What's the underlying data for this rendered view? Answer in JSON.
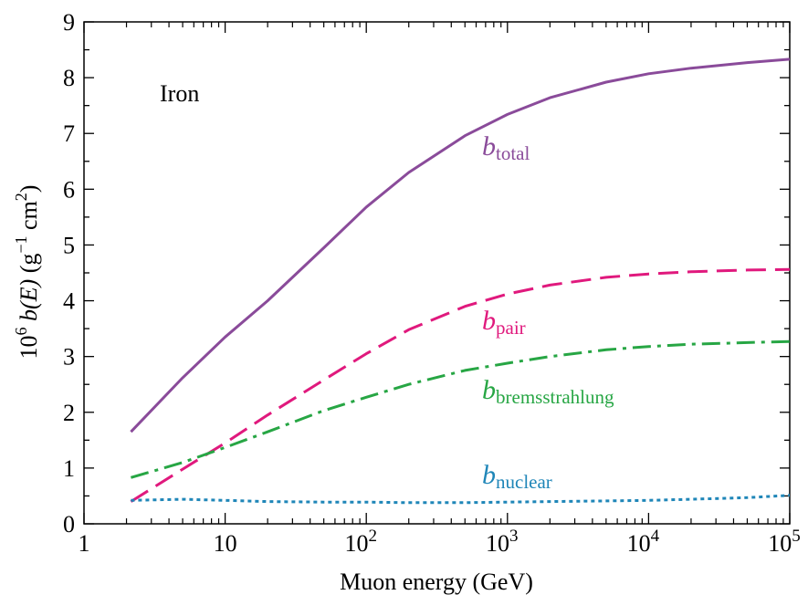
{
  "chart_data": {
    "type": "line",
    "title": "",
    "xlabel": "Muon energy (GeV)",
    "ylabel": {
      "base": "10",
      "exp": "6",
      "func": "b(E)",
      "units_open": "(g",
      "units_exp": "−1",
      "units_mid": " cm",
      "units_exp2": "2",
      "units_close": ")"
    },
    "x_scale": "log",
    "xlim": [
      1,
      100000
    ],
    "ylim": [
      0,
      9
    ],
    "x_ticks": [
      {
        "value": 1,
        "label": "1",
        "exp": ""
      },
      {
        "value": 10,
        "label": "10",
        "exp": ""
      },
      {
        "value": 100,
        "label": "10",
        "exp": "2"
      },
      {
        "value": 1000,
        "label": "10",
        "exp": "3"
      },
      {
        "value": 10000,
        "label": "10",
        "exp": "4"
      },
      {
        "value": 100000,
        "label": "10",
        "exp": "5"
      }
    ],
    "y_ticks": [
      "0",
      "1",
      "2",
      "3",
      "4",
      "5",
      "6",
      "7",
      "8",
      "9"
    ],
    "grid": false,
    "annotation": "Iron",
    "series": [
      {
        "id": "total",
        "name": "b",
        "subscript": "total",
        "color": "#8a4b9a",
        "dash": "solid",
        "x": [
          2.15,
          5,
          10,
          20,
          50,
          100,
          200,
          500,
          1000,
          2000,
          5000,
          10000,
          20000,
          50000,
          100000
        ],
        "y": [
          1.65,
          2.62,
          3.35,
          4.0,
          4.95,
          5.68,
          6.3,
          6.96,
          7.34,
          7.64,
          7.92,
          8.07,
          8.17,
          8.27,
          8.33
        ]
      },
      {
        "id": "pair",
        "name": "b",
        "subscript": "pair",
        "color": "#e0197d",
        "dash": "dashed",
        "x": [
          2.15,
          5,
          10,
          20,
          50,
          100,
          200,
          500,
          1000,
          2000,
          5000,
          10000,
          20000,
          50000,
          100000
        ],
        "y": [
          0.4,
          0.98,
          1.45,
          1.95,
          2.58,
          3.05,
          3.48,
          3.9,
          4.12,
          4.28,
          4.42,
          4.48,
          4.52,
          4.55,
          4.56
        ]
      },
      {
        "id": "brems",
        "name": "b",
        "subscript": "bremsstrahlung",
        "color": "#27a644",
        "dash": "dashdot",
        "x": [
          2.15,
          5,
          10,
          20,
          50,
          100,
          200,
          500,
          1000,
          2000,
          5000,
          10000,
          20000,
          50000,
          100000
        ],
        "y": [
          0.83,
          1.1,
          1.37,
          1.65,
          2.03,
          2.27,
          2.5,
          2.75,
          2.88,
          3.0,
          3.12,
          3.18,
          3.22,
          3.25,
          3.27
        ]
      },
      {
        "id": "nuclear",
        "name": "b",
        "subscript": "nuclear",
        "color": "#1f86b8",
        "dash": "dotted",
        "x": [
          2.15,
          5,
          10,
          20,
          50,
          100,
          200,
          500,
          1000,
          2000,
          5000,
          10000,
          20000,
          50000,
          100000
        ],
        "y": [
          0.42,
          0.44,
          0.42,
          0.4,
          0.39,
          0.39,
          0.38,
          0.38,
          0.39,
          0.4,
          0.41,
          0.42,
          0.44,
          0.47,
          0.51
        ]
      }
    ]
  }
}
